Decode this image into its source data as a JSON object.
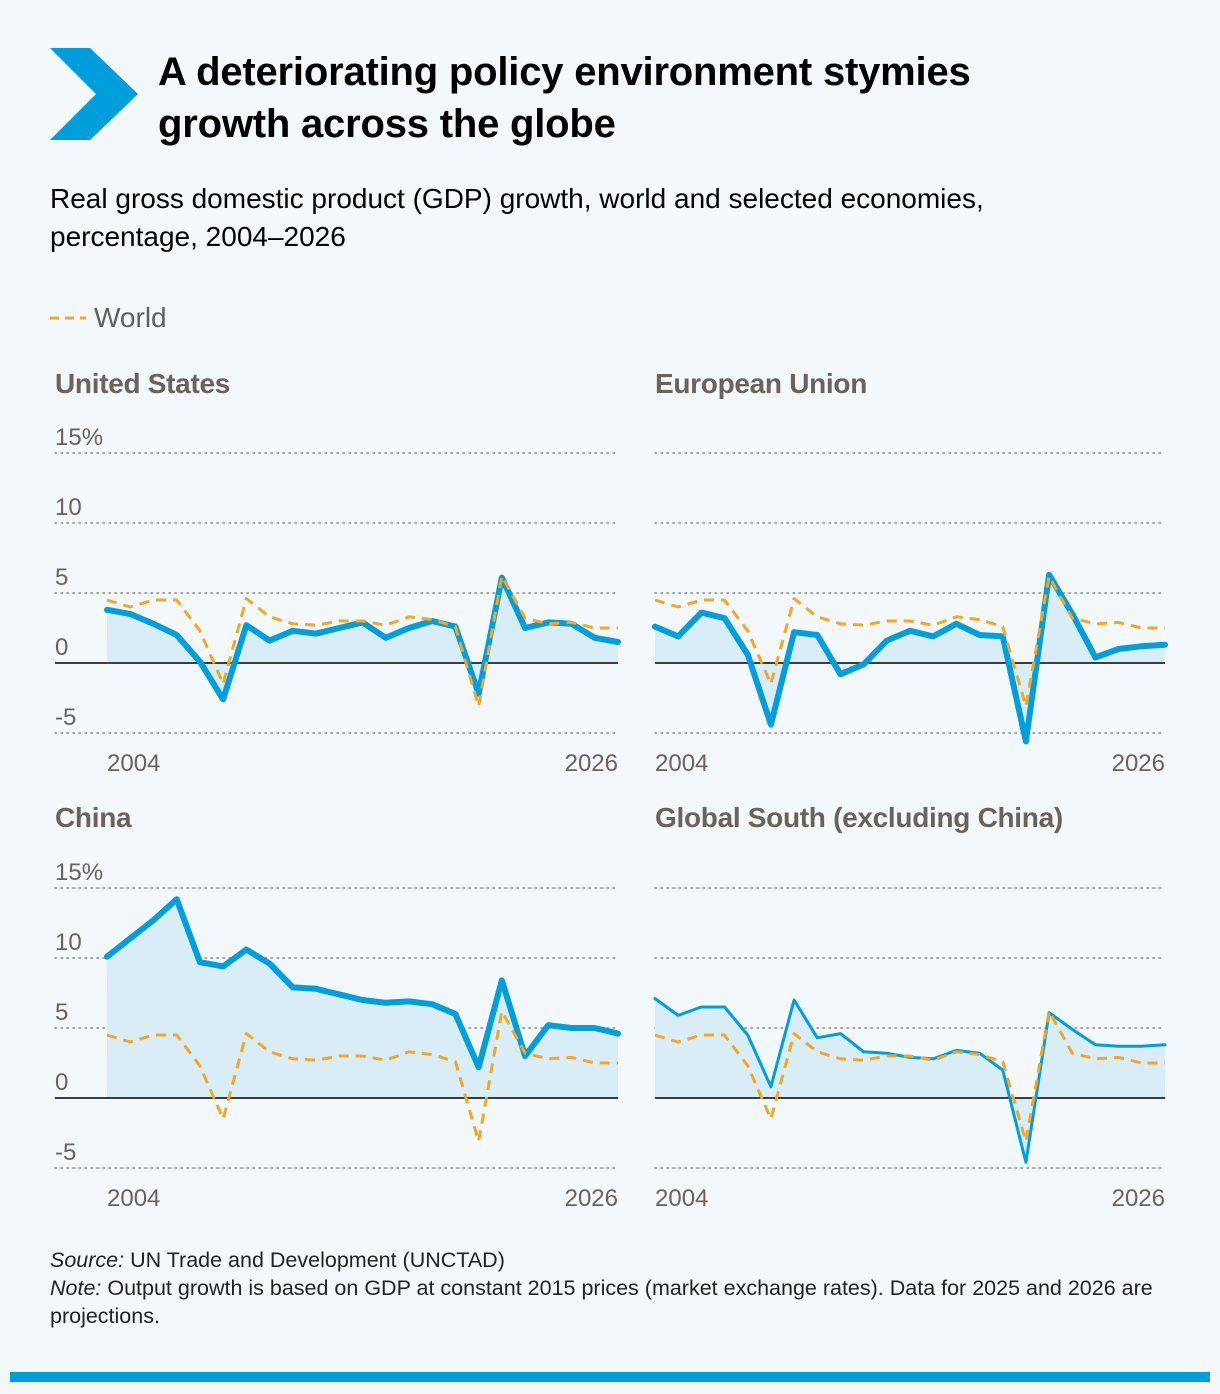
{
  "header": {
    "title_line1": "A deteriorating policy environment stymies",
    "title_line2": "growth across the globe",
    "subtitle_line1": "Real gross domestic product (GDP) growth, world and selected economies,",
    "subtitle_line2": "percentage, 2004–2026"
  },
  "legend": {
    "world_label": "World"
  },
  "colors": {
    "accent": "#009edb",
    "world": "#f5a623",
    "fill": "#d9edf9",
    "grid": "#8a8a8a",
    "text_muted": "#6b625a"
  },
  "chart_data": [
    {
      "type": "line",
      "title": "United States",
      "x": [
        2004,
        2005,
        2006,
        2007,
        2008,
        2009,
        2010,
        2011,
        2012,
        2013,
        2014,
        2015,
        2016,
        2017,
        2018,
        2019,
        2020,
        2021,
        2022,
        2023,
        2024,
        2025,
        2026
      ],
      "x_tick_labels": [
        "2004",
        "2026"
      ],
      "y_tick_labels": [
        "15%",
        "10",
        "5",
        "0",
        "-5"
      ],
      "ylim": [
        -5,
        15
      ],
      "series": [
        {
          "name": "United States",
          "values": [
            3.8,
            3.5,
            2.8,
            2.0,
            0.1,
            -2.6,
            2.7,
            1.6,
            2.3,
            2.1,
            2.5,
            2.9,
            1.8,
            2.5,
            3.0,
            2.6,
            -2.2,
            6.1,
            2.5,
            2.9,
            2.8,
            1.8,
            1.5
          ]
        },
        {
          "name": "World",
          "values": [
            4.5,
            4.0,
            4.5,
            4.5,
            2.3,
            -1.5,
            4.6,
            3.3,
            2.8,
            2.7,
            3.0,
            3.0,
            2.7,
            3.3,
            3.1,
            2.6,
            -3.1,
            6.2,
            3.2,
            2.8,
            2.9,
            2.5,
            2.5
          ]
        }
      ],
      "grid": true
    },
    {
      "type": "line",
      "title": "European Union",
      "x": [
        2004,
        2005,
        2006,
        2007,
        2008,
        2009,
        2010,
        2011,
        2012,
        2013,
        2014,
        2015,
        2016,
        2017,
        2018,
        2019,
        2020,
        2021,
        2022,
        2023,
        2024,
        2025,
        2026
      ],
      "x_tick_labels": [
        "2004",
        "2026"
      ],
      "y_tick_labels": [],
      "ylim": [
        -5,
        15
      ],
      "series": [
        {
          "name": "European Union",
          "values": [
            2.6,
            1.9,
            3.6,
            3.2,
            0.6,
            -4.4,
            2.2,
            2.0,
            -0.8,
            -0.1,
            1.6,
            2.3,
            1.9,
            2.8,
            2.0,
            1.9,
            -5.6,
            6.3,
            3.5,
            0.4,
            1.0,
            1.2,
            1.3
          ]
        },
        {
          "name": "World",
          "values": [
            4.5,
            4.0,
            4.5,
            4.5,
            2.3,
            -1.5,
            4.6,
            3.3,
            2.8,
            2.7,
            3.0,
            3.0,
            2.7,
            3.3,
            3.1,
            2.6,
            -3.1,
            6.2,
            3.2,
            2.8,
            2.9,
            2.5,
            2.5
          ]
        }
      ],
      "grid": true
    },
    {
      "type": "line",
      "title": "China",
      "x": [
        2004,
        2005,
        2006,
        2007,
        2008,
        2009,
        2010,
        2011,
        2012,
        2013,
        2014,
        2015,
        2016,
        2017,
        2018,
        2019,
        2020,
        2021,
        2022,
        2023,
        2024,
        2025,
        2026
      ],
      "x_tick_labels": [
        "2004",
        "2026"
      ],
      "y_tick_labels": [
        "15%",
        "10",
        "5",
        "0",
        "-5"
      ],
      "ylim": [
        -5,
        15
      ],
      "series": [
        {
          "name": "China",
          "values": [
            10.1,
            11.4,
            12.7,
            14.2,
            9.7,
            9.4,
            10.6,
            9.6,
            7.9,
            7.8,
            7.4,
            7.0,
            6.8,
            6.9,
            6.7,
            6.0,
            2.2,
            8.4,
            3.0,
            5.2,
            5.0,
            5.0,
            4.6
          ]
        },
        {
          "name": "World",
          "values": [
            4.5,
            4.0,
            4.5,
            4.5,
            2.3,
            -1.5,
            4.6,
            3.3,
            2.8,
            2.7,
            3.0,
            3.0,
            2.7,
            3.3,
            3.1,
            2.6,
            -3.1,
            6.2,
            3.2,
            2.8,
            2.9,
            2.5,
            2.5
          ]
        }
      ],
      "grid": true
    },
    {
      "type": "line",
      "title": "Global South (excluding China)",
      "x": [
        2004,
        2005,
        2006,
        2007,
        2008,
        2009,
        2010,
        2011,
        2012,
        2013,
        2014,
        2015,
        2016,
        2017,
        2018,
        2019,
        2020,
        2021,
        2022,
        2023,
        2024,
        2025,
        2026
      ],
      "x_tick_labels": [
        "2004",
        "2026"
      ],
      "y_tick_labels": [],
      "ylim": [
        -5,
        15
      ],
      "series": [
        {
          "name": "Global South (excluding China)",
          "values": [
            7.1,
            5.9,
            6.5,
            6.5,
            4.5,
            0.8,
            7.0,
            4.3,
            4.6,
            3.3,
            3.2,
            2.9,
            2.8,
            3.4,
            3.2,
            2.0,
            -4.6,
            6.1,
            4.9,
            3.8,
            3.7,
            3.7,
            3.8
          ]
        },
        {
          "name": "World",
          "values": [
            4.5,
            4.0,
            4.5,
            4.5,
            2.3,
            -1.5,
            4.6,
            3.3,
            2.8,
            2.7,
            3.0,
            3.0,
            2.7,
            3.3,
            3.1,
            2.6,
            -3.1,
            6.2,
            3.2,
            2.8,
            2.9,
            2.5,
            2.5
          ]
        }
      ],
      "grid": true
    }
  ],
  "footer": {
    "source_label": "Source:",
    "source_text": " UN Trade and Development (UNCTAD)",
    "note_label": "Note:",
    "note_text": " Output growth is based on GDP at constant 2015 prices (market exchange rates). Data for 2025 and 2026 are projections."
  }
}
